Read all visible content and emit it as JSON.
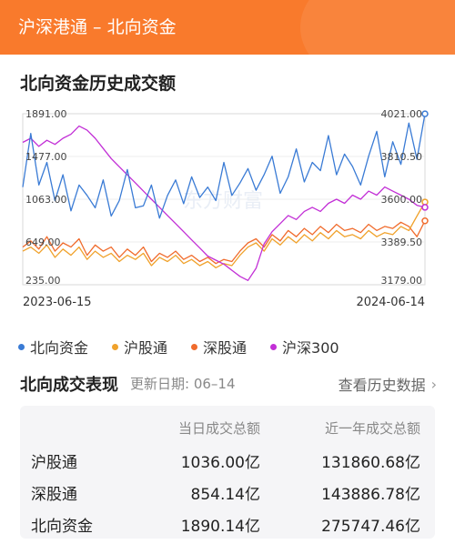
{
  "header": {
    "title": "沪深港通 – 北向资金"
  },
  "section": {
    "title": "北向资金历史成交额"
  },
  "chart_data": {
    "type": "line",
    "left_axis": {
      "ticks": [
        "1891.00",
        "1477.00",
        "1063.00",
        "649.00",
        "235.00"
      ],
      "range": [
        235,
        1891
      ]
    },
    "right_axis": {
      "ticks": [
        "4021.00",
        "3810.50",
        "3600.00",
        "3389.50",
        "3179.00"
      ],
      "range": [
        3179,
        4021
      ]
    },
    "x_labels": [
      "2023-06-15",
      "2024-06-14"
    ],
    "watermark": "东方财富",
    "series": [
      {
        "name": "北向资金",
        "color": "#3a7bd5",
        "axis": "left",
        "values": [
          1180,
          1700,
          1200,
          1420,
          1050,
          1300,
          950,
          1200,
          1100,
          980,
          1250,
          900,
          1050,
          1350,
          980,
          1000,
          1200,
          880,
          1100,
          1250,
          1020,
          1280,
          1080,
          1180,
          1050,
          1420,
          1100,
          1220,
          1360,
          1150,
          1300,
          1480,
          1120,
          1280,
          1550,
          1230,
          1420,
          1340,
          1680,
          1300,
          1500,
          1380,
          1200,
          1480,
          1720,
          1280,
          1620,
          1400,
          1800,
          1450,
          1890
        ]
      },
      {
        "name": "沪股通",
        "color": "#f0a22c",
        "axis": "left",
        "values": [
          560,
          600,
          540,
          620,
          500,
          580,
          520,
          600,
          480,
          560,
          500,
          540,
          460,
          520,
          480,
          540,
          420,
          500,
          460,
          520,
          440,
          480,
          420,
          460,
          400,
          440,
          420,
          520,
          600,
          640,
          560,
          680,
          620,
          700,
          640,
          720,
          660,
          740,
          680,
          760,
          700,
          720,
          680,
          760,
          700,
          740,
          720,
          800,
          760,
          900,
          1036
        ]
      },
      {
        "name": "深股通",
        "color": "#f06b2c",
        "axis": "left",
        "values": [
          600,
          660,
          580,
          700,
          560,
          640,
          600,
          680,
          520,
          620,
          560,
          600,
          500,
          580,
          520,
          600,
          460,
          540,
          500,
          560,
          480,
          520,
          460,
          500,
          440,
          480,
          460,
          560,
          640,
          680,
          600,
          720,
          660,
          760,
          700,
          780,
          720,
          800,
          740,
          820,
          760,
          780,
          740,
          820,
          760,
          800,
          780,
          840,
          800,
          700,
          854
        ]
      },
      {
        "name": "沪深300",
        "color": "#c22fd6",
        "axis": "right",
        "values": [
          3880,
          3900,
          3860,
          3890,
          3870,
          3900,
          3920,
          3960,
          3940,
          3900,
          3850,
          3800,
          3760,
          3720,
          3680,
          3640,
          3600,
          3560,
          3520,
          3480,
          3440,
          3400,
          3360,
          3320,
          3300,
          3280,
          3250,
          3220,
          3200,
          3260,
          3380,
          3440,
          3480,
          3520,
          3500,
          3540,
          3560,
          3540,
          3580,
          3600,
          3580,
          3620,
          3600,
          3640,
          3620,
          3660,
          3640,
          3620,
          3600,
          3570,
          3560
        ]
      }
    ]
  },
  "legend": [
    {
      "label": "北向资金",
      "color": "#3a7bd5"
    },
    {
      "label": "沪股通",
      "color": "#f0a22c"
    },
    {
      "label": "深股通",
      "color": "#f06b2c"
    },
    {
      "label": "沪深300",
      "color": "#c22fd6"
    }
  ],
  "performance": {
    "title": "北向成交表现",
    "update": "更新日期: 06–14",
    "history_link": "查看历史数据",
    "columns": [
      "当日成交总额",
      "近一年成交总额"
    ],
    "rows": [
      {
        "name": "沪股通",
        "day": "1036.00亿",
        "year": "131860.68亿"
      },
      {
        "name": "深股通",
        "day": "854.14亿",
        "year": "143886.78亿"
      },
      {
        "name": "北向资金",
        "day": "1890.14亿",
        "year": "275747.46亿"
      }
    ]
  }
}
